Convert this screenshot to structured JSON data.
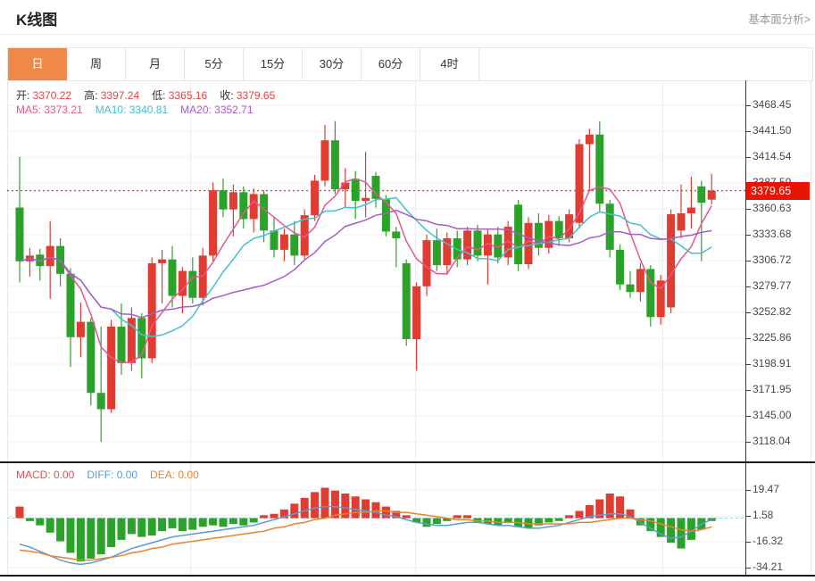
{
  "header": {
    "title": "K线图",
    "link": "基本面分析>"
  },
  "tabs": {
    "items": [
      "日",
      "周",
      "月",
      "5分",
      "15分",
      "30分",
      "60分",
      "4时"
    ],
    "names": [
      "day",
      "week",
      "month",
      "5min",
      "15min",
      "30min",
      "60min",
      "4hour"
    ],
    "active_index": 0,
    "active_color": "#f0884a"
  },
  "legend": {
    "ohlc": [
      {
        "label": "开:",
        "value": "3370.22"
      },
      {
        "label": "高:",
        "value": "3397.24"
      },
      {
        "label": "低:",
        "value": "3365.16"
      },
      {
        "label": "收:",
        "value": "3379.65"
      }
    ],
    "ma": [
      {
        "label": "MA5:",
        "value": "3373.21",
        "color": "#e8558f"
      },
      {
        "label": "MA10:",
        "value": "3340.81",
        "color": "#45c0cc"
      },
      {
        "label": "MA20:",
        "value": "3352.71",
        "color": "#a75cc8"
      }
    ]
  },
  "macd_legend": [
    {
      "label": "MACD:",
      "value": "0.00",
      "color": "#e05050"
    },
    {
      "label": "DIFF:",
      "value": "0.00",
      "color": "#5b9bd5"
    },
    {
      "label": "DEA:",
      "value": "0.00",
      "color": "#e8832e"
    }
  ],
  "price_marker": {
    "value": "3379.65",
    "price": 3379.65,
    "color": "#e81402"
  },
  "chart_data": {
    "type": "candlestick+macd",
    "title": "K线图 (日K)",
    "legend_position": "top-left",
    "grid": true,
    "main": {
      "y_ticks": [
        "3468.45",
        "3441.50",
        "3414.54",
        "3387.59",
        "3360.63",
        "3333.68",
        "3306.72",
        "3279.77",
        "3252.82",
        "3225.86",
        "3198.91",
        "3171.95",
        "3145.00",
        "3118.04"
      ],
      "ylim": [
        3104,
        3495
      ],
      "last_price_line": 3379.65,
      "up_color": "#e13c32",
      "down_color": "#2ba32b",
      "ma_periods": [
        5,
        10,
        20
      ],
      "ma_colors": [
        "#e8558f",
        "#45c0cc",
        "#a75cc8"
      ],
      "candles_ohlc": [
        [
          3362,
          3415,
          3284,
          3306
        ],
        [
          3306,
          3320,
          3290,
          3312
        ],
        [
          3313,
          3319,
          3286,
          3301
        ],
        [
          3301,
          3348,
          3267,
          3322
        ],
        [
          3322,
          3330,
          3280,
          3293
        ],
        [
          3293,
          3299,
          3196,
          3227
        ],
        [
          3227,
          3263,
          3206,
          3243
        ],
        [
          3243,
          3247,
          3156,
          3169
        ],
        [
          3169,
          3238,
          3118,
          3152
        ],
        [
          3152,
          3245,
          3148,
          3238
        ],
        [
          3238,
          3262,
          3188,
          3200
        ],
        [
          3200,
          3258,
          3192,
          3247
        ],
        [
          3247,
          3252,
          3184,
          3205
        ],
        [
          3205,
          3310,
          3200,
          3304
        ],
        [
          3304,
          3318,
          3262,
          3308
        ],
        [
          3308,
          3322,
          3258,
          3270
        ],
        [
          3270,
          3300,
          3252,
          3296
        ],
        [
          3296,
          3310,
          3262,
          3268
        ],
        [
          3268,
          3320,
          3260,
          3312
        ],
        [
          3312,
          3388,
          3306,
          3380
        ],
        [
          3380,
          3392,
          3352,
          3360
        ],
        [
          3360,
          3386,
          3332,
          3378
        ],
        [
          3378,
          3384,
          3340,
          3350
        ],
        [
          3350,
          3382,
          3336,
          3376
        ],
        [
          3376,
          3380,
          3326,
          3338
        ],
        [
          3338,
          3352,
          3310,
          3318
        ],
        [
          3318,
          3340,
          3306,
          3334
        ],
        [
          3334,
          3348,
          3302,
          3312
        ],
        [
          3312,
          3360,
          3308,
          3354
        ],
        [
          3354,
          3396,
          3348,
          3390
        ],
        [
          3390,
          3448,
          3384,
          3432
        ],
        [
          3432,
          3452,
          3376,
          3381
        ],
        [
          3381,
          3403,
          3362,
          3388
        ],
        [
          3392,
          3400,
          3350,
          3369
        ],
        [
          3369,
          3420,
          3352,
          3372
        ],
        [
          3395,
          3399,
          3362,
          3371
        ],
        [
          3371,
          3375,
          3332,
          3337
        ],
        [
          3337,
          3342,
          3300,
          3330
        ],
        [
          3304,
          3308,
          3218,
          3225
        ],
        [
          3225,
          3284,
          3192,
          3280
        ],
        [
          3280,
          3334,
          3270,
          3328
        ],
        [
          3328,
          3340,
          3296,
          3302
        ],
        [
          3302,
          3336,
          3292,
          3330
        ],
        [
          3330,
          3338,
          3300,
          3308
        ],
        [
          3308,
          3342,
          3302,
          3338
        ],
        [
          3338,
          3344,
          3306,
          3312
        ],
        [
          3312,
          3340,
          3282,
          3334
        ],
        [
          3334,
          3342,
          3304,
          3310
        ],
        [
          3310,
          3348,
          3302,
          3342
        ],
        [
          3365,
          3370,
          3296,
          3303
        ],
        [
          3303,
          3352,
          3298,
          3346
        ],
        [
          3346,
          3356,
          3312,
          3320
        ],
        [
          3320,
          3354,
          3314,
          3348
        ],
        [
          3348,
          3353,
          3322,
          3330
        ],
        [
          3330,
          3360,
          3326,
          3355
        ],
        [
          3346,
          3433,
          3340,
          3428
        ],
        [
          3428,
          3444,
          3380,
          3438
        ],
        [
          3438,
          3452,
          3358,
          3366
        ],
        [
          3366,
          3370,
          3310,
          3318
        ],
        [
          3318,
          3324,
          3276,
          3282
        ],
        [
          3282,
          3296,
          3268,
          3274
        ],
        [
          3274,
          3304,
          3264,
          3298
        ],
        [
          3298,
          3302,
          3238,
          3248
        ],
        [
          3248,
          3292,
          3240,
          3286
        ],
        [
          3258,
          3360,
          3252,
          3355
        ],
        [
          3338,
          3386,
          3330,
          3356
        ],
        [
          3356,
          3394,
          3340,
          3362
        ],
        [
          3384,
          3390,
          3306,
          3367
        ],
        [
          3370.22,
          3397.24,
          3365.16,
          3379.65
        ]
      ]
    },
    "macd": {
      "y_ticks": [
        "19.47",
        "1.58",
        "-16.32",
        "-34.21"
      ],
      "zero_line": 0,
      "diff_color": "#5b9bd5",
      "dea_color": "#e8832e",
      "histogram": [
        8,
        -2,
        -5,
        -10,
        -16,
        -24,
        -30,
        -28,
        -25,
        -20,
        -15,
        -11,
        -13,
        -12,
        -9,
        -7,
        -9,
        -8,
        -6,
        -5,
        -6,
        -4,
        -5,
        -3,
        2,
        3,
        6,
        10,
        14,
        18,
        21,
        19,
        17,
        15,
        13,
        11,
        8,
        5,
        2,
        -3,
        -6,
        -4,
        -2,
        2,
        2,
        -3,
        -4,
        -5,
        -3,
        -6,
        -7,
        -5,
        -3,
        -2,
        2,
        5,
        9,
        13,
        17,
        15,
        6,
        -5,
        -9,
        -13,
        -17,
        -21,
        -15,
        -8,
        -2
      ],
      "diff": [
        -18,
        -20,
        -23,
        -26,
        -29,
        -31,
        -32,
        -31,
        -29,
        -27,
        -24,
        -21,
        -19,
        -17,
        -15,
        -13,
        -12,
        -11,
        -10,
        -9,
        -8,
        -7,
        -6,
        -5,
        -3,
        -1,
        1,
        3,
        5,
        7,
        8,
        8,
        7,
        6,
        5,
        4,
        2,
        1,
        -1,
        -3,
        -4,
        -5,
        -5,
        -4,
        -3,
        -3,
        -4,
        -5,
        -5,
        -6,
        -7,
        -7,
        -6,
        -5,
        -3,
        -1,
        1,
        2,
        3,
        3,
        1,
        -3,
        -7,
        -11,
        -14,
        -13,
        -9,
        -4,
        -1
      ],
      "dea": [
        -22,
        -23,
        -24,
        -26,
        -27,
        -28,
        -29,
        -29,
        -28,
        -27,
        -26,
        -24,
        -23,
        -21,
        -20,
        -18,
        -17,
        -16,
        -15,
        -14,
        -13,
        -12,
        -11,
        -10,
        -9,
        -7,
        -6,
        -4,
        -3,
        -1,
        0,
        2,
        3,
        4,
        4,
        5,
        5,
        4,
        4,
        3,
        2,
        1,
        0,
        -1,
        -1,
        -2,
        -2,
        -3,
        -3,
        -3,
        -4,
        -4,
        -4,
        -4,
        -4,
        -3,
        -3,
        -2,
        -1,
        0,
        0,
        -1,
        -2,
        -4,
        -6,
        -8,
        -9,
        -8,
        -6
      ]
    }
  }
}
